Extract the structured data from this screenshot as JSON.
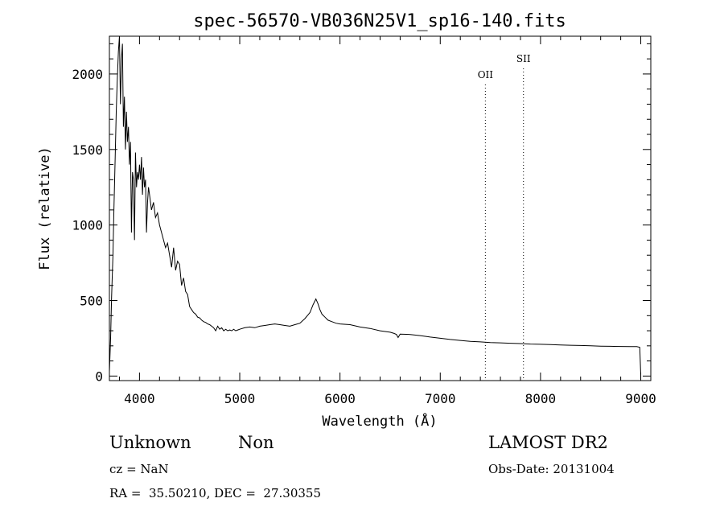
{
  "chart_data": {
    "type": "line",
    "title": "spec-56570-VB036N25V1_sp16-140.fits",
    "xlabel": "Wavelength (Å)",
    "ylabel": "Flux (relative)",
    "xlim": [
      3700,
      9100
    ],
    "ylim": [
      -30,
      2250
    ],
    "x_ticks": [
      4000,
      5000,
      6000,
      7000,
      8000,
      9000
    ],
    "y_ticks": [
      0,
      500,
      1000,
      1500,
      2000
    ],
    "grid": false,
    "line_color": "#000000",
    "lines": [
      {
        "name": "OII",
        "x": 7450
      },
      {
        "name": "SII",
        "x": 7830
      }
    ],
    "series": [
      {
        "x": [
          3700,
          3712,
          3722,
          3735,
          3745,
          3758,
          3768,
          3778,
          3790,
          3800,
          3810,
          3820,
          3830,
          3840,
          3850,
          3860,
          3870,
          3880,
          3890,
          3900,
          3910,
          3920,
          3930,
          3940,
          3950,
          3960,
          3970,
          3980,
          3990,
          4000,
          4010,
          4020,
          4030,
          4040,
          4050,
          4060,
          4070,
          4080,
          4090,
          4100,
          4110,
          4120,
          4140,
          4160,
          4180,
          4200,
          4220,
          4240,
          4260,
          4280,
          4300,
          4320,
          4340,
          4360,
          4380,
          4400,
          4420,
          4440,
          4460,
          4480,
          4500,
          4520,
          4540,
          4560,
          4580,
          4600,
          4620,
          4640,
          4660,
          4680,
          4700,
          4720,
          4740,
          4760,
          4780,
          4800,
          4820,
          4840,
          4860,
          4880,
          4900,
          4920,
          4940,
          4960,
          4980,
          5000,
          5050,
          5100,
          5150,
          5200,
          5250,
          5300,
          5350,
          5400,
          5450,
          5500,
          5550,
          5600,
          5650,
          5700,
          5730,
          5760,
          5780,
          5800,
          5820,
          5850,
          5880,
          5920,
          5960,
          6000,
          6100,
          6200,
          6300,
          6400,
          6500,
          6540,
          6563,
          6580,
          6600,
          6700,
          6800,
          6900,
          7000,
          7100,
          7200,
          7300,
          7400,
          7500,
          7600,
          7700,
          7800,
          7900,
          8000,
          8100,
          8200,
          8300,
          8400,
          8500,
          8600,
          8700,
          8800,
          8900,
          8960,
          8990,
          9000
        ],
        "y": [
          30,
          250,
          520,
          800,
          1100,
          1450,
          1750,
          1950,
          2150,
          2250,
          1800,
          2100,
          2200,
          1650,
          1850,
          1500,
          1750,
          1550,
          1650,
          1400,
          1550,
          950,
          1350,
          1300,
          900,
          1480,
          1250,
          1350,
          1300,
          1400,
          1300,
          1450,
          1200,
          1380,
          1250,
          1300,
          950,
          1150,
          1250,
          1200,
          1150,
          1100,
          1150,
          1050,
          1080,
          1000,
          950,
          900,
          850,
          880,
          800,
          720,
          850,
          700,
          760,
          740,
          600,
          650,
          560,
          540,
          460,
          440,
          420,
          410,
          390,
          385,
          370,
          360,
          355,
          345,
          340,
          330,
          320,
          300,
          330,
          310,
          320,
          300,
          310,
          300,
          305,
          300,
          310,
          300,
          305,
          310,
          320,
          325,
          320,
          330,
          335,
          340,
          345,
          340,
          335,
          330,
          340,
          350,
          380,
          420,
          470,
          510,
          480,
          440,
          410,
          390,
          370,
          360,
          350,
          345,
          340,
          325,
          315,
          300,
          290,
          282,
          275,
          255,
          278,
          275,
          268,
          258,
          250,
          242,
          236,
          230,
          226,
          222,
          220,
          217,
          215,
          212,
          210,
          208,
          206,
          204,
          202,
          200,
          198,
          197,
          196,
          195,
          195,
          190,
          10
        ]
      }
    ]
  },
  "info": {
    "class": "Unknown",
    "subclass": "Non",
    "survey": "LAMOST DR2",
    "cz": "cz = NaN",
    "obs_date": "Obs-Date: 20131004",
    "coords": "RA =  35.50210, DEC =  27.30355"
  }
}
